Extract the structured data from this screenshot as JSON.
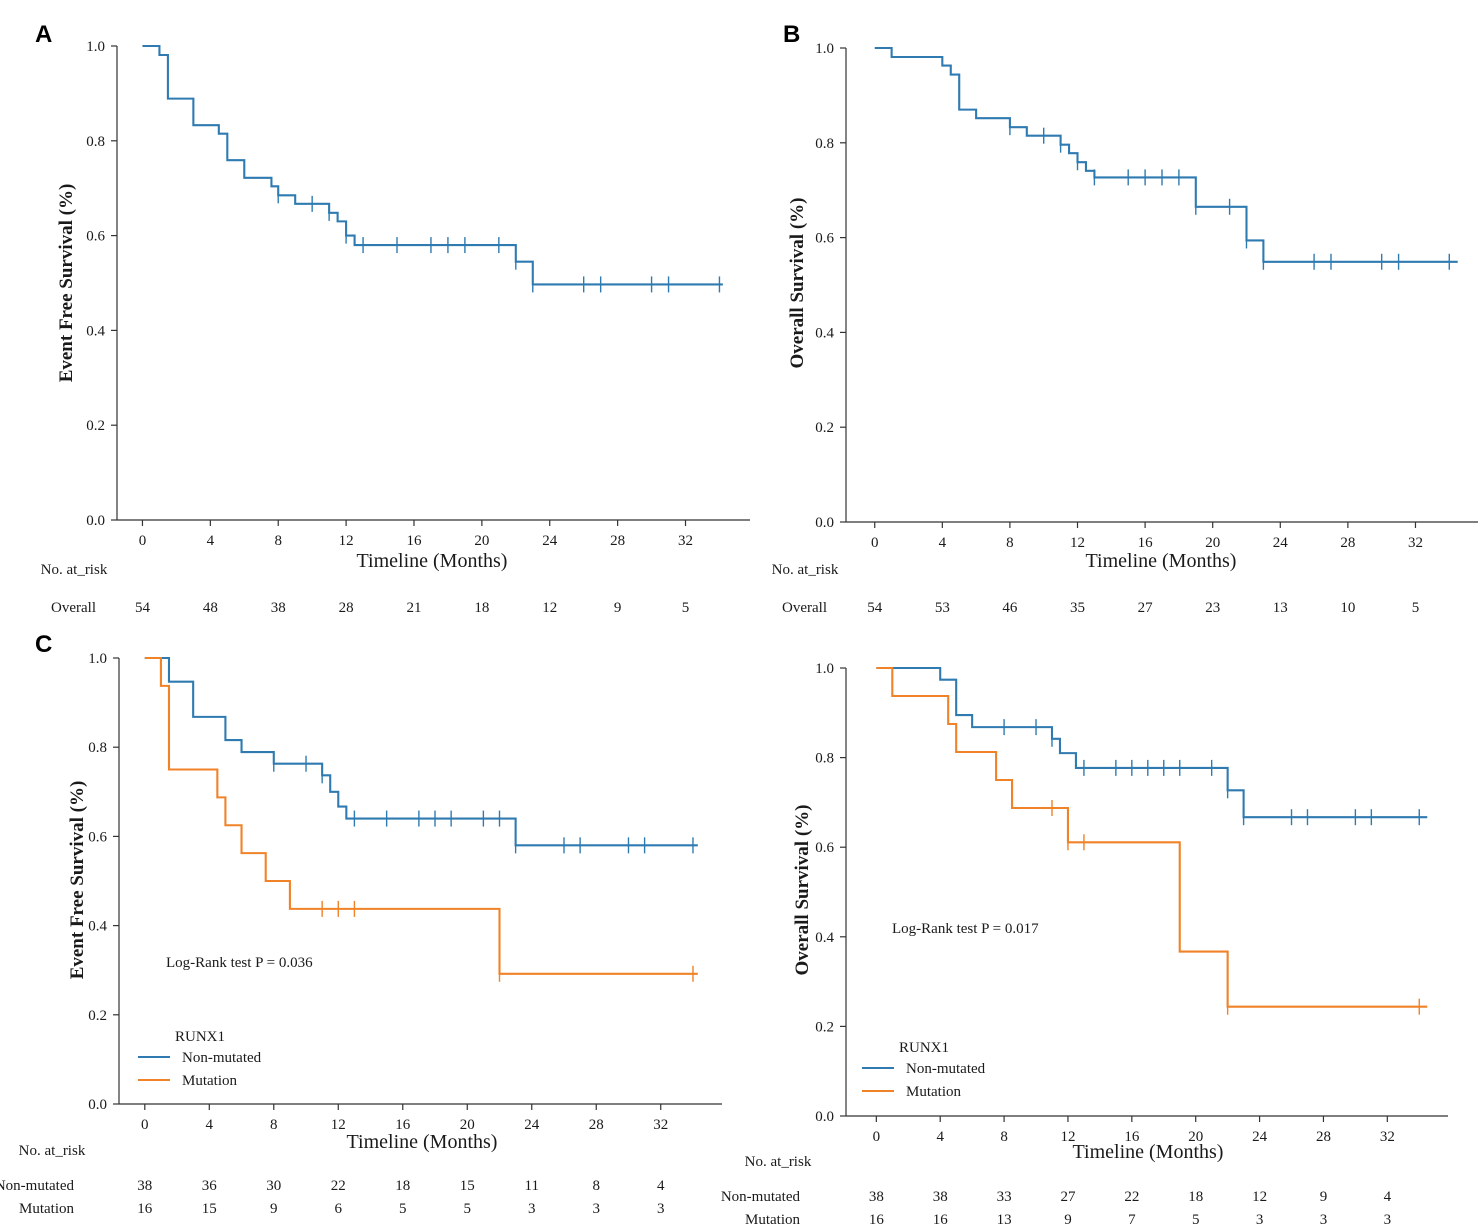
{
  "colors": {
    "nonmutated": "#2f7bb1",
    "mutation": "#f08228"
  },
  "chart_data": [
    {
      "panel": "A",
      "type": "line",
      "subtype": "kaplan-meier",
      "xlabel": "Timeline (Months)",
      "ylabel": "Event Free Survival (%)",
      "xlim": [
        -1.5,
        35.8
      ],
      "ylim": [
        0.0,
        1.0
      ],
      "xticks": [
        0,
        4,
        8,
        12,
        16,
        20,
        24,
        28,
        32
      ],
      "yticks": [
        "0.0",
        "0.2",
        "0.4",
        "0.6",
        "0.8",
        "1.0"
      ],
      "series": [
        {
          "name": "Overall",
          "color_key": "nonmutated",
          "steps": [
            [
              0,
              1.0
            ],
            [
              1.0,
              0.981
            ],
            [
              1.5,
              0.889
            ],
            [
              3.0,
              0.833
            ],
            [
              4.5,
              0.815
            ],
            [
              5.0,
              0.759
            ],
            [
              6.0,
              0.722
            ],
            [
              7.6,
              0.704
            ],
            [
              8.0,
              0.685
            ],
            [
              9.0,
              0.667
            ],
            [
              11.0,
              0.648
            ],
            [
              11.5,
              0.63
            ],
            [
              12.0,
              0.6
            ],
            [
              12.5,
              0.58
            ],
            [
              22.0,
              0.545
            ],
            [
              23.0,
              0.497
            ],
            [
              34.2,
              0.497
            ]
          ],
          "censored": [
            [
              8.0,
              0.685
            ],
            [
              10.0,
              0.667
            ],
            [
              11.0,
              0.648
            ],
            [
              12.0,
              0.6
            ],
            [
              13.0,
              0.58
            ],
            [
              15.0,
              0.58
            ],
            [
              17.0,
              0.58
            ],
            [
              18.0,
              0.58
            ],
            [
              19.0,
              0.58
            ],
            [
              21.0,
              0.58
            ],
            [
              22.0,
              0.545
            ],
            [
              23.0,
              0.497
            ],
            [
              26.0,
              0.497
            ],
            [
              27.0,
              0.497
            ],
            [
              30.0,
              0.497
            ],
            [
              31.0,
              0.497
            ],
            [
              34.0,
              0.497
            ]
          ]
        }
      ],
      "risk_table": {
        "header": "No. at_risk",
        "rows": [
          {
            "label": "Overall",
            "values": [
              "54",
              "48",
              "38",
              "28",
              "21",
              "18",
              "12",
              "9",
              "5"
            ]
          }
        ]
      }
    },
    {
      "panel": "B",
      "type": "line",
      "subtype": "kaplan-meier",
      "xlabel": "Timeline (Months)",
      "ylabel": "Overall Survival (%)",
      "xlim": [
        -1.7,
        35.7
      ],
      "ylim": [
        0.0,
        1.0
      ],
      "xticks": [
        0,
        4,
        8,
        12,
        16,
        20,
        24,
        28,
        32
      ],
      "yticks": [
        "0.0",
        "0.2",
        "0.4",
        "0.6",
        "0.8",
        "1.0"
      ],
      "series": [
        {
          "name": "Overall",
          "color_key": "nonmutated",
          "steps": [
            [
              0,
              1.0
            ],
            [
              1.0,
              0.981
            ],
            [
              4.0,
              0.963
            ],
            [
              4.5,
              0.944
            ],
            [
              5.0,
              0.87
            ],
            [
              6.0,
              0.852
            ],
            [
              8.0,
              0.833
            ],
            [
              9.0,
              0.815
            ],
            [
              11.0,
              0.796
            ],
            [
              11.5,
              0.778
            ],
            [
              12.0,
              0.759
            ],
            [
              12.5,
              0.741
            ],
            [
              13.0,
              0.727
            ],
            [
              19.0,
              0.665
            ],
            [
              22.0,
              0.594
            ],
            [
              23.0,
              0.549
            ],
            [
              34.5,
              0.549
            ]
          ],
          "censored": [
            [
              8.0,
              0.833
            ],
            [
              10.0,
              0.815
            ],
            [
              11.0,
              0.796
            ],
            [
              12.0,
              0.759
            ],
            [
              13.0,
              0.727
            ],
            [
              15.0,
              0.727
            ],
            [
              16.0,
              0.727
            ],
            [
              17.0,
              0.727
            ],
            [
              18.0,
              0.727
            ],
            [
              19.0,
              0.665
            ],
            [
              21.0,
              0.665
            ],
            [
              22.0,
              0.594
            ],
            [
              23.0,
              0.549
            ],
            [
              26.0,
              0.549
            ],
            [
              27.0,
              0.549
            ],
            [
              30.0,
              0.549
            ],
            [
              31.0,
              0.549
            ],
            [
              34.0,
              0.549
            ]
          ]
        }
      ],
      "risk_table": {
        "header": "No. at_risk",
        "rows": [
          {
            "label": "Overall",
            "values": [
              "54",
              "53",
              "46",
              "35",
              "27",
              "23",
              "13",
              "10",
              "5"
            ]
          }
        ]
      }
    },
    {
      "panel": "C",
      "type": "line",
      "subtype": "kaplan-meier",
      "xlabel": "Timeline (Months)",
      "ylabel": "Event Free Survival (%)",
      "xlim": [
        -1.6,
        35.8
      ],
      "ylim": [
        0.0,
        1.0
      ],
      "xticks": [
        0,
        4,
        8,
        12,
        16,
        20,
        24,
        28,
        32
      ],
      "yticks": [
        "0.0",
        "0.2",
        "0.4",
        "0.6",
        "0.8",
        "1.0"
      ],
      "annotation": "Log-Rank test P = 0.036",
      "legend": {
        "title": "RUNX1",
        "position": "lower-left"
      },
      "series": [
        {
          "name": "Non-mutated",
          "color_key": "nonmutated",
          "steps": [
            [
              0,
              1.0
            ],
            [
              1.5,
              0.947
            ],
            [
              3.0,
              0.868
            ],
            [
              5.0,
              0.816
            ],
            [
              6.0,
              0.789
            ],
            [
              8.0,
              0.763
            ],
            [
              11.0,
              0.737
            ],
            [
              11.5,
              0.7
            ],
            [
              12.0,
              0.667
            ],
            [
              12.5,
              0.64
            ],
            [
              23.0,
              0.58
            ],
            [
              34.3,
              0.58
            ]
          ],
          "censored": [
            [
              8.0,
              0.763
            ],
            [
              10.0,
              0.763
            ],
            [
              11.0,
              0.737
            ],
            [
              13.0,
              0.64
            ],
            [
              15.0,
              0.64
            ],
            [
              17.0,
              0.64
            ],
            [
              18.0,
              0.64
            ],
            [
              19.0,
              0.64
            ],
            [
              21.0,
              0.64
            ],
            [
              22.0,
              0.64
            ],
            [
              23.0,
              0.58
            ],
            [
              26.0,
              0.58
            ],
            [
              27.0,
              0.58
            ],
            [
              30.0,
              0.58
            ],
            [
              31.0,
              0.58
            ],
            [
              34.0,
              0.58
            ]
          ]
        },
        {
          "name": "Mutation",
          "color_key": "mutation",
          "steps": [
            [
              0,
              1.0
            ],
            [
              1.0,
              0.9375
            ],
            [
              1.5,
              0.75
            ],
            [
              4.5,
              0.6875
            ],
            [
              5.0,
              0.625
            ],
            [
              6.0,
              0.5625
            ],
            [
              7.5,
              0.5
            ],
            [
              9.0,
              0.4375
            ],
            [
              22.0,
              0.292
            ],
            [
              34.3,
              0.292
            ]
          ],
          "censored": [
            [
              11.0,
              0.4375
            ],
            [
              12.0,
              0.4375
            ],
            [
              13.0,
              0.4375
            ],
            [
              22.0,
              0.292
            ],
            [
              34.0,
              0.292
            ]
          ]
        }
      ],
      "risk_table": {
        "header": "No. at_risk",
        "rows": [
          {
            "label": "Non-mutated",
            "values": [
              "38",
              "36",
              "30",
              "22",
              "18",
              "15",
              "11",
              "8",
              "4"
            ]
          },
          {
            "label": "Mutation",
            "values": [
              "16",
              "15",
              "9",
              "6",
              "5",
              "5",
              "3",
              "3",
              "3"
            ]
          }
        ]
      }
    },
    {
      "panel": "",
      "type": "line",
      "subtype": "kaplan-meier",
      "xlabel": "Timeline (Months)",
      "ylabel": "Overall Survival (%)",
      "xlim": [
        -1.9,
        35.8
      ],
      "ylim": [
        0.0,
        1.0
      ],
      "xticks": [
        0,
        4,
        8,
        12,
        16,
        20,
        24,
        28,
        32
      ],
      "yticks": [
        "0.0",
        "0.2",
        "0.4",
        "0.6",
        "0.8",
        "1.0"
      ],
      "annotation": "Log-Rank test P = 0.017",
      "legend": {
        "title": "RUNX1",
        "position": "lower-left"
      },
      "series": [
        {
          "name": "Non-mutated",
          "color_key": "nonmutated",
          "steps": [
            [
              0,
              1.0
            ],
            [
              4.0,
              0.974
            ],
            [
              5.0,
              0.895
            ],
            [
              6.0,
              0.868
            ],
            [
              11.0,
              0.842
            ],
            [
              11.5,
              0.81
            ],
            [
              12.5,
              0.777
            ],
            [
              22.0,
              0.727
            ],
            [
              23.0,
              0.667
            ],
            [
              34.5,
              0.667
            ]
          ],
          "censored": [
            [
              8.0,
              0.868
            ],
            [
              10.0,
              0.868
            ],
            [
              11.0,
              0.842
            ],
            [
              13.0,
              0.777
            ],
            [
              15.0,
              0.777
            ],
            [
              16.0,
              0.777
            ],
            [
              17.0,
              0.777
            ],
            [
              18.0,
              0.777
            ],
            [
              19.0,
              0.777
            ],
            [
              21.0,
              0.777
            ],
            [
              22.0,
              0.727
            ],
            [
              23.0,
              0.667
            ],
            [
              26.0,
              0.667
            ],
            [
              27.0,
              0.667
            ],
            [
              30.0,
              0.667
            ],
            [
              31.0,
              0.667
            ],
            [
              34.0,
              0.667
            ]
          ]
        },
        {
          "name": "Mutation",
          "color_key": "mutation",
          "steps": [
            [
              0,
              1.0
            ],
            [
              1.0,
              0.9375
            ],
            [
              4.5,
              0.875
            ],
            [
              5.0,
              0.8125
            ],
            [
              7.5,
              0.75
            ],
            [
              8.5,
              0.6875
            ],
            [
              11.5,
              0.6875
            ],
            [
              12.0,
              0.611
            ],
            [
              19.0,
              0.367
            ],
            [
              22.0,
              0.244
            ],
            [
              34.5,
              0.244
            ]
          ],
          "censored": [
            [
              11.0,
              0.6875
            ],
            [
              12.0,
              0.611
            ],
            [
              13.0,
              0.611
            ],
            [
              22.0,
              0.244
            ],
            [
              34.0,
              0.244
            ]
          ]
        }
      ],
      "risk_table": {
        "header": "No. at_risk",
        "rows": [
          {
            "label": "Non-mutated",
            "values": [
              "38",
              "38",
              "33",
              "27",
              "22",
              "18",
              "12",
              "9",
              "4"
            ]
          },
          {
            "label": "Mutation",
            "values": [
              "16",
              "16",
              "13",
              "9",
              "7",
              "5",
              "3",
              "3",
              "3"
            ]
          }
        ]
      }
    }
  ]
}
